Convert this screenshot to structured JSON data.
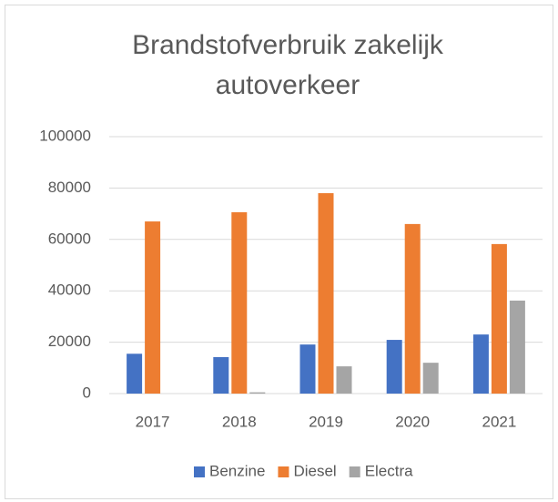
{
  "chart_data": {
    "type": "bar",
    "title": "Brandstofverbruik zakelijk autoverkeer",
    "categories": [
      "2017",
      "2018",
      "2019",
      "2020",
      "2021"
    ],
    "series": [
      {
        "name": "Benzine",
        "color": "#4472c4",
        "values": [
          15500,
          14200,
          19100,
          20900,
          23000
        ]
      },
      {
        "name": "Diesel",
        "color": "#ed7d31",
        "values": [
          67000,
          70600,
          78000,
          66000,
          58200
        ]
      },
      {
        "name": "Electra",
        "color": "#a5a5a5",
        "values": [
          0,
          500,
          10600,
          12000,
          36200
        ]
      }
    ],
    "ylim": [
      0,
      100000
    ],
    "yticks": [
      0,
      20000,
      40000,
      60000,
      80000,
      100000
    ],
    "grid": true,
    "legend": "bottom"
  }
}
